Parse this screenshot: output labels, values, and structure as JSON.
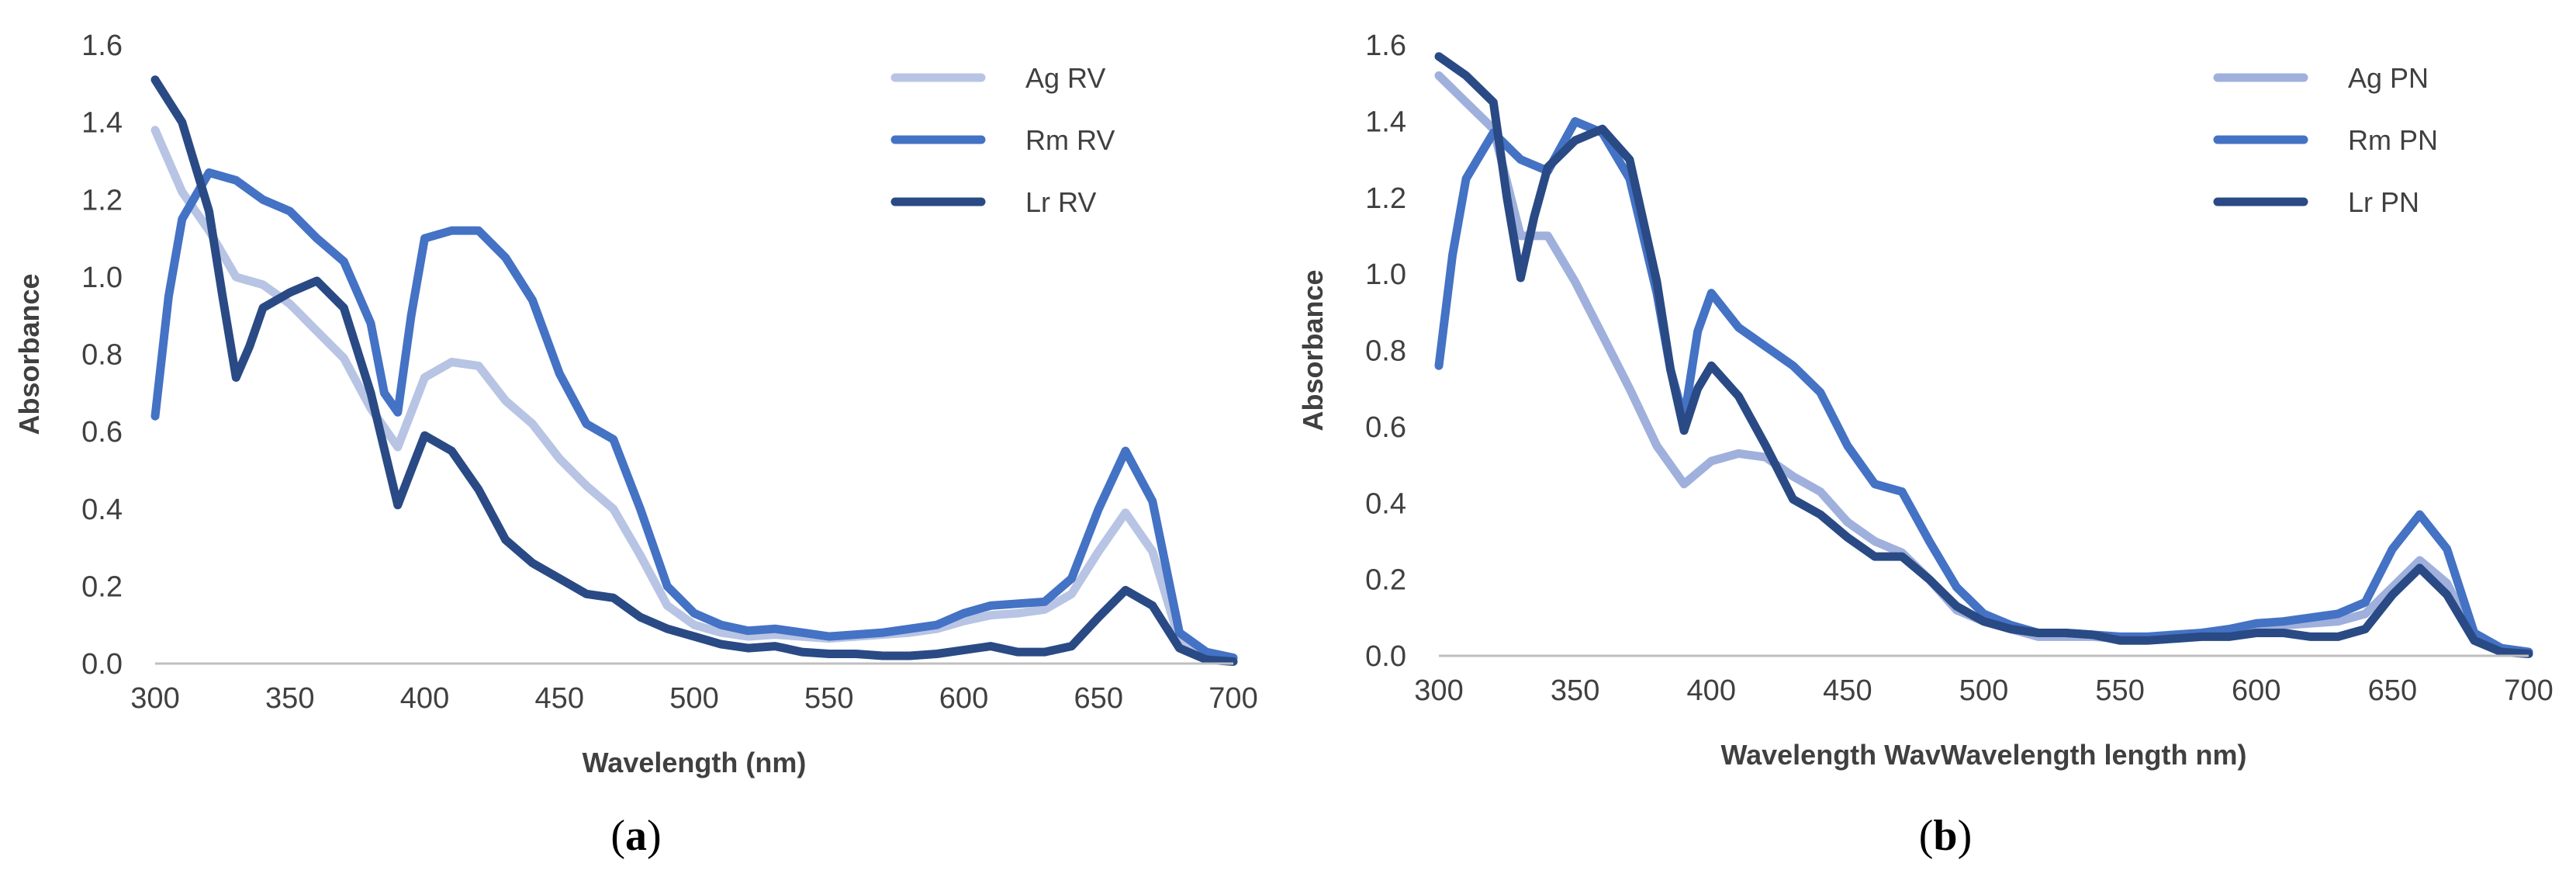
{
  "chart_data": [
    {
      "type": "line",
      "panel_label": {
        "open": "(",
        "letter": "a",
        "close": ")"
      },
      "xlabel": "Wavelength (nm)",
      "ylabel": "Absorbance",
      "xlim": [
        300,
        700
      ],
      "ylim": [
        0,
        1.6
      ],
      "x_ticks": [
        "300",
        "350",
        "400",
        "450",
        "500",
        "550",
        "600",
        "650",
        "700"
      ],
      "y_ticks": [
        "0.0",
        "0.2",
        "0.4",
        "0.6",
        "0.8",
        "1.0",
        "1.2",
        "1.4",
        "1.6"
      ],
      "grid": false,
      "legend_position": "top-right",
      "series": [
        {
          "name": "Ag RV",
          "color": "#b8c4e4",
          "points": [
            [
              300,
              1.38
            ],
            [
              310,
              1.22
            ],
            [
              320,
              1.12
            ],
            [
              330,
              1.0
            ],
            [
              340,
              0.98
            ],
            [
              350,
              0.93
            ],
            [
              360,
              0.86
            ],
            [
              370,
              0.79
            ],
            [
              380,
              0.66
            ],
            [
              390,
              0.56
            ],
            [
              400,
              0.74
            ],
            [
              410,
              0.78
            ],
            [
              420,
              0.77
            ],
            [
              430,
              0.68
            ],
            [
              440,
              0.62
            ],
            [
              450,
              0.53
            ],
            [
              460,
              0.46
            ],
            [
              470,
              0.4
            ],
            [
              480,
              0.28
            ],
            [
              490,
              0.15
            ],
            [
              500,
              0.1
            ],
            [
              510,
              0.08
            ],
            [
              520,
              0.07
            ],
            [
              530,
              0.075
            ],
            [
              540,
              0.07
            ],
            [
              550,
              0.065
            ],
            [
              560,
              0.07
            ],
            [
              570,
              0.075
            ],
            [
              580,
              0.08
            ],
            [
              590,
              0.09
            ],
            [
              600,
              0.11
            ],
            [
              610,
              0.125
            ],
            [
              620,
              0.13
            ],
            [
              630,
              0.14
            ],
            [
              640,
              0.18
            ],
            [
              650,
              0.29
            ],
            [
              660,
              0.39
            ],
            [
              670,
              0.29
            ],
            [
              680,
              0.06
            ],
            [
              690,
              0.02
            ],
            [
              700,
              0.01
            ]
          ]
        },
        {
          "name": "Rm RV",
          "color": "#4472c4",
          "points": [
            [
              300,
              0.64
            ],
            [
              305,
              0.95
            ],
            [
              310,
              1.15
            ],
            [
              320,
              1.27
            ],
            [
              330,
              1.25
            ],
            [
              340,
              1.2
            ],
            [
              350,
              1.17
            ],
            [
              360,
              1.1
            ],
            [
              370,
              1.04
            ],
            [
              380,
              0.88
            ],
            [
              385,
              0.7
            ],
            [
              390,
              0.65
            ],
            [
              395,
              0.9
            ],
            [
              400,
              1.1
            ],
            [
              410,
              1.12
            ],
            [
              420,
              1.12
            ],
            [
              430,
              1.05
            ],
            [
              440,
              0.94
            ],
            [
              450,
              0.75
            ],
            [
              460,
              0.62
            ],
            [
              470,
              0.58
            ],
            [
              480,
              0.4
            ],
            [
              490,
              0.2
            ],
            [
              500,
              0.13
            ],
            [
              510,
              0.1
            ],
            [
              520,
              0.085
            ],
            [
              530,
              0.09
            ],
            [
              540,
              0.08
            ],
            [
              550,
              0.07
            ],
            [
              560,
              0.075
            ],
            [
              570,
              0.08
            ],
            [
              580,
              0.09
            ],
            [
              590,
              0.1
            ],
            [
              600,
              0.13
            ],
            [
              610,
              0.15
            ],
            [
              620,
              0.155
            ],
            [
              630,
              0.16
            ],
            [
              640,
              0.22
            ],
            [
              650,
              0.4
            ],
            [
              660,
              0.55
            ],
            [
              670,
              0.42
            ],
            [
              680,
              0.08
            ],
            [
              690,
              0.03
            ],
            [
              700,
              0.015
            ]
          ]
        },
        {
          "name": "Lr RV",
          "color": "#2a4a85",
          "points": [
            [
              300,
              1.51
            ],
            [
              310,
              1.4
            ],
            [
              320,
              1.17
            ],
            [
              325,
              0.95
            ],
            [
              330,
              0.74
            ],
            [
              335,
              0.82
            ],
            [
              340,
              0.92
            ],
            [
              350,
              0.96
            ],
            [
              360,
              0.99
            ],
            [
              370,
              0.92
            ],
            [
              380,
              0.7
            ],
            [
              390,
              0.41
            ],
            [
              395,
              0.5
            ],
            [
              400,
              0.59
            ],
            [
              410,
              0.55
            ],
            [
              420,
              0.45
            ],
            [
              430,
              0.32
            ],
            [
              440,
              0.26
            ],
            [
              450,
              0.22
            ],
            [
              460,
              0.18
            ],
            [
              470,
              0.17
            ],
            [
              480,
              0.12
            ],
            [
              490,
              0.09
            ],
            [
              500,
              0.07
            ],
            [
              510,
              0.05
            ],
            [
              520,
              0.04
            ],
            [
              530,
              0.045
            ],
            [
              540,
              0.03
            ],
            [
              550,
              0.025
            ],
            [
              560,
              0.025
            ],
            [
              570,
              0.02
            ],
            [
              580,
              0.02
            ],
            [
              590,
              0.025
            ],
            [
              600,
              0.035
            ],
            [
              610,
              0.045
            ],
            [
              620,
              0.03
            ],
            [
              630,
              0.03
            ],
            [
              640,
              0.045
            ],
            [
              650,
              0.12
            ],
            [
              660,
              0.19
            ],
            [
              670,
              0.15
            ],
            [
              680,
              0.04
            ],
            [
              690,
              0.01
            ],
            [
              700,
              0.005
            ]
          ]
        }
      ]
    },
    {
      "type": "line",
      "panel_label": {
        "open": "(",
        "letter": "b",
        "close": ")"
      },
      "xlabel": "Wavelength WavWavelength length nm)",
      "ylabel": "Absorbance",
      "xlim": [
        300,
        700
      ],
      "ylim": [
        0,
        1.6
      ],
      "x_ticks": [
        "300",
        "350",
        "400",
        "450",
        "500",
        "550",
        "600",
        "650",
        "700"
      ],
      "y_ticks": [
        "0.0",
        "0.2",
        "0.4",
        "0.6",
        "0.8",
        "1.0",
        "1.2",
        "1.4",
        "1.6"
      ],
      "grid": false,
      "legend_position": "top-right",
      "series": [
        {
          "name": "Ag PN",
          "color": "#9fb0dc",
          "points": [
            [
              300,
              1.52
            ],
            [
              310,
              1.45
            ],
            [
              320,
              1.38
            ],
            [
              330,
              1.1
            ],
            [
              340,
              1.1
            ],
            [
              350,
              0.98
            ],
            [
              360,
              0.84
            ],
            [
              370,
              0.7
            ],
            [
              380,
              0.55
            ],
            [
              390,
              0.45
            ],
            [
              400,
              0.51
            ],
            [
              410,
              0.53
            ],
            [
              420,
              0.52
            ],
            [
              430,
              0.47
            ],
            [
              440,
              0.43
            ],
            [
              450,
              0.35
            ],
            [
              460,
              0.3
            ],
            [
              470,
              0.27
            ],
            [
              480,
              0.2
            ],
            [
              490,
              0.12
            ],
            [
              500,
              0.09
            ],
            [
              510,
              0.07
            ],
            [
              520,
              0.05
            ],
            [
              530,
              0.05
            ],
            [
              540,
              0.05
            ],
            [
              550,
              0.045
            ],
            [
              560,
              0.045
            ],
            [
              570,
              0.05
            ],
            [
              580,
              0.055
            ],
            [
              590,
              0.065
            ],
            [
              600,
              0.07
            ],
            [
              610,
              0.08
            ],
            [
              620,
              0.085
            ],
            [
              630,
              0.09
            ],
            [
              640,
              0.11
            ],
            [
              650,
              0.18
            ],
            [
              660,
              0.25
            ],
            [
              670,
              0.19
            ],
            [
              680,
              0.05
            ],
            [
              690,
              0.02
            ],
            [
              700,
              0.01
            ]
          ]
        },
        {
          "name": "Rm PN",
          "color": "#4472c4",
          "points": [
            [
              300,
              0.76
            ],
            [
              305,
              1.05
            ],
            [
              310,
              1.25
            ],
            [
              320,
              1.37
            ],
            [
              330,
              1.3
            ],
            [
              340,
              1.27
            ],
            [
              350,
              1.4
            ],
            [
              360,
              1.37
            ],
            [
              370,
              1.25
            ],
            [
              380,
              0.95
            ],
            [
              385,
              0.75
            ],
            [
              390,
              0.62
            ],
            [
              395,
              0.85
            ],
            [
              400,
              0.95
            ],
            [
              410,
              0.86
            ],
            [
              420,
              0.81
            ],
            [
              430,
              0.76
            ],
            [
              440,
              0.69
            ],
            [
              450,
              0.55
            ],
            [
              460,
              0.45
            ],
            [
              470,
              0.43
            ],
            [
              480,
              0.3
            ],
            [
              490,
              0.18
            ],
            [
              500,
              0.11
            ],
            [
              510,
              0.08
            ],
            [
              520,
              0.06
            ],
            [
              530,
              0.06
            ],
            [
              540,
              0.055
            ],
            [
              550,
              0.05
            ],
            [
              560,
              0.05
            ],
            [
              570,
              0.055
            ],
            [
              580,
              0.06
            ],
            [
              590,
              0.07
            ],
            [
              600,
              0.085
            ],
            [
              610,
              0.09
            ],
            [
              620,
              0.1
            ],
            [
              630,
              0.11
            ],
            [
              640,
              0.14
            ],
            [
              650,
              0.28
            ],
            [
              660,
              0.37
            ],
            [
              670,
              0.28
            ],
            [
              680,
              0.06
            ],
            [
              690,
              0.02
            ],
            [
              700,
              0.01
            ]
          ]
        },
        {
          "name": "Lr PN",
          "color": "#2a4a85",
          "points": [
            [
              300,
              1.57
            ],
            [
              310,
              1.52
            ],
            [
              320,
              1.45
            ],
            [
              325,
              1.2
            ],
            [
              330,
              0.99
            ],
            [
              335,
              1.15
            ],
            [
              340,
              1.28
            ],
            [
              350,
              1.35
            ],
            [
              360,
              1.38
            ],
            [
              370,
              1.3
            ],
            [
              380,
              0.98
            ],
            [
              385,
              0.75
            ],
            [
              390,
              0.59
            ],
            [
              395,
              0.7
            ],
            [
              400,
              0.76
            ],
            [
              410,
              0.68
            ],
            [
              420,
              0.55
            ],
            [
              430,
              0.41
            ],
            [
              440,
              0.37
            ],
            [
              450,
              0.31
            ],
            [
              460,
              0.26
            ],
            [
              470,
              0.26
            ],
            [
              480,
              0.2
            ],
            [
              490,
              0.13
            ],
            [
              500,
              0.09
            ],
            [
              510,
              0.07
            ],
            [
              520,
              0.06
            ],
            [
              530,
              0.06
            ],
            [
              540,
              0.055
            ],
            [
              550,
              0.04
            ],
            [
              560,
              0.04
            ],
            [
              570,
              0.045
            ],
            [
              580,
              0.05
            ],
            [
              590,
              0.05
            ],
            [
              600,
              0.06
            ],
            [
              610,
              0.06
            ],
            [
              620,
              0.05
            ],
            [
              630,
              0.05
            ],
            [
              640,
              0.07
            ],
            [
              650,
              0.16
            ],
            [
              660,
              0.23
            ],
            [
              670,
              0.16
            ],
            [
              680,
              0.04
            ],
            [
              690,
              0.01
            ],
            [
              700,
              0.005
            ]
          ]
        }
      ]
    }
  ]
}
